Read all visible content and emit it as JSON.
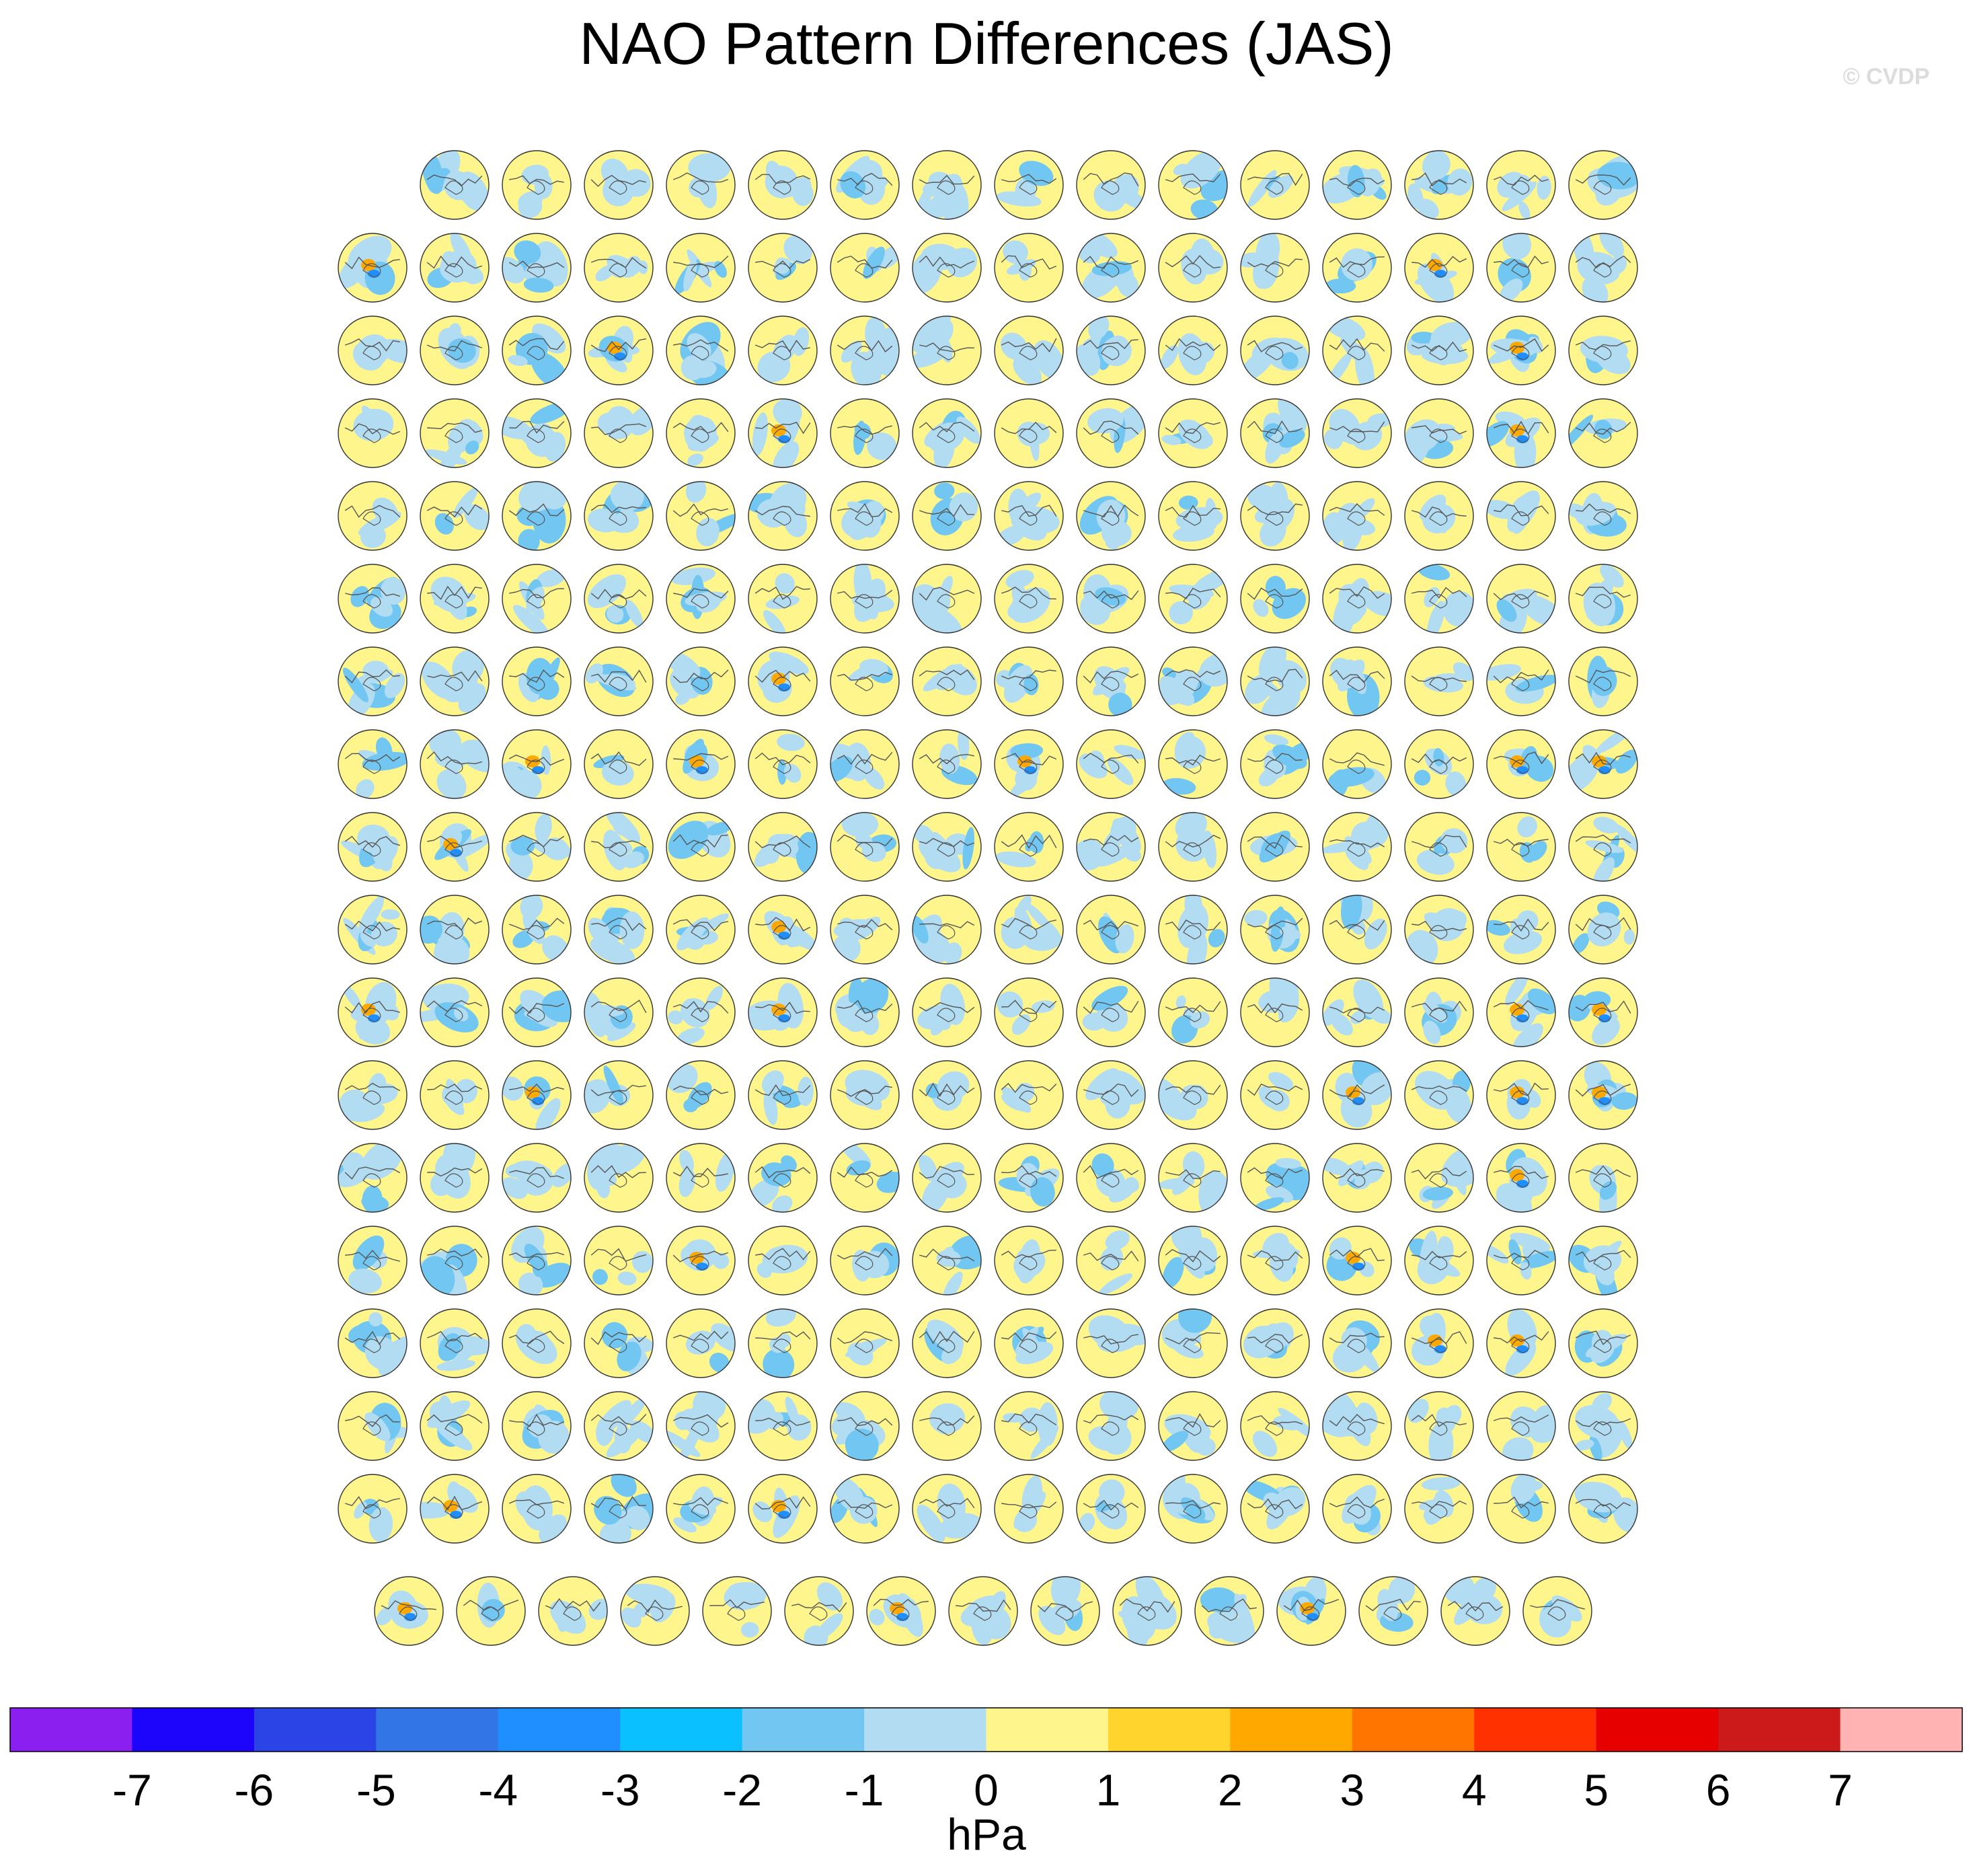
{
  "figure": {
    "title": "NAO Pattern Differences (JAS)",
    "watermark": "© CVDP"
  },
  "chart_data": {
    "type": "heatmap",
    "title": "NAO Pattern Differences (JAS)",
    "projection": "north polar stereographic",
    "panel_rows": [
      15,
      16,
      16,
      16,
      16,
      16,
      16,
      16,
      16,
      16,
      16,
      16,
      16,
      16,
      16,
      16,
      16,
      15
    ],
    "panel_count": 286,
    "colorbar": {
      "label": "hPa",
      "ticks": [
        -7,
        -6,
        -5,
        -4,
        -3,
        -2,
        -1,
        0,
        1,
        2,
        3,
        4,
        5,
        6,
        7
      ],
      "tick_labels": [
        "-7",
        "-6",
        "-5",
        "-4",
        "-3",
        "-2",
        "-1",
        "0",
        "1",
        "2",
        "3",
        "4",
        "5",
        "6",
        "7"
      ],
      "colors": [
        "#8a1fef",
        "#1c05fa",
        "#2a44e6",
        "#3175e6",
        "#1f8fff",
        "#0bc0ff",
        "#72c7f2",
        "#b2dcf1",
        "#fff58d",
        "#ffd42d",
        "#ffa800",
        "#ff7500",
        "#ff3100",
        "#e60000",
        "#cc1a1a",
        "#ffb3b3"
      ]
    }
  }
}
